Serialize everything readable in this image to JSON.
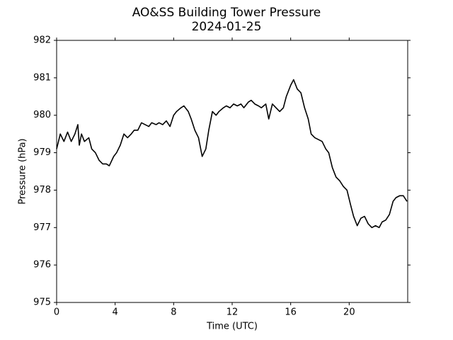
{
  "chart_data": {
    "type": "line",
    "title": "AO&SS Building Tower Pressure",
    "subtitle": "2024-01-25",
    "x_label": "Time (UTC)",
    "y_label": "Pressure (hPa)",
    "xlim": [
      0,
      24
    ],
    "xticks": [
      0,
      4,
      8,
      12,
      16,
      20
    ],
    "ylim": [
      975,
      982
    ],
    "yticks": [
      975,
      976,
      977,
      978,
      979,
      980,
      981,
      982
    ],
    "series": [
      {
        "name": "Pressure",
        "color": "#000000",
        "x": [
          0,
          0.25,
          0.5,
          0.75,
          1.0,
          1.25,
          1.45,
          1.55,
          1.7,
          1.9,
          2.2,
          2.4,
          2.65,
          2.9,
          3.15,
          3.4,
          3.6,
          3.9,
          4.1,
          4.35,
          4.6,
          4.85,
          5.1,
          5.3,
          5.55,
          5.8,
          6.05,
          6.3,
          6.5,
          6.8,
          7.0,
          7.25,
          7.5,
          7.75,
          8.0,
          8.2,
          8.5,
          8.7,
          9.0,
          9.2,
          9.45,
          9.7,
          9.95,
          10.2,
          10.4,
          10.65,
          10.9,
          11.1,
          11.4,
          11.6,
          11.85,
          12.1,
          12.35,
          12.6,
          12.8,
          13.1,
          13.3,
          13.55,
          13.8,
          14.0,
          14.3,
          14.5,
          14.75,
          15.0,
          15.25,
          15.5,
          15.7,
          16.0,
          16.2,
          16.45,
          16.7,
          16.95,
          17.2,
          17.4,
          17.65,
          17.9,
          18.15,
          18.4,
          18.6,
          18.85,
          19.1,
          19.35,
          19.6,
          19.85,
          20.1,
          20.3,
          20.55,
          20.8,
          21.05,
          21.3,
          21.55,
          21.8,
          22.05,
          22.25,
          22.5,
          22.75,
          23.0,
          23.2,
          23.45,
          23.7,
          23.95
        ],
        "values": [
          979.1,
          979.5,
          979.3,
          979.55,
          979.3,
          979.5,
          979.75,
          979.2,
          979.5,
          979.3,
          979.4,
          979.1,
          979.0,
          978.8,
          978.7,
          978.7,
          978.65,
          978.9,
          979.0,
          979.2,
          979.5,
          979.4,
          979.5,
          979.6,
          979.6,
          979.8,
          979.75,
          979.7,
          979.8,
          979.75,
          979.8,
          979.75,
          979.85,
          979.7,
          980.0,
          980.1,
          980.2,
          980.25,
          980.1,
          979.9,
          979.6,
          979.4,
          978.9,
          979.1,
          979.6,
          980.1,
          980.0,
          980.1,
          980.2,
          980.25,
          980.2,
          980.3,
          980.25,
          980.3,
          980.2,
          980.35,
          980.4,
          980.3,
          980.25,
          980.2,
          980.3,
          979.9,
          980.3,
          980.2,
          980.1,
          980.2,
          980.5,
          980.8,
          980.95,
          980.7,
          980.6,
          980.2,
          979.9,
          979.5,
          979.4,
          979.35,
          979.3,
          979.1,
          979.0,
          978.6,
          978.35,
          978.25,
          978.1,
          978.0,
          977.6,
          977.3,
          977.05,
          977.25,
          977.3,
          977.1,
          977.0,
          977.05,
          977.0,
          977.15,
          977.2,
          977.35,
          977.7,
          977.8,
          977.85,
          977.85,
          977.7
        ]
      }
    ]
  }
}
